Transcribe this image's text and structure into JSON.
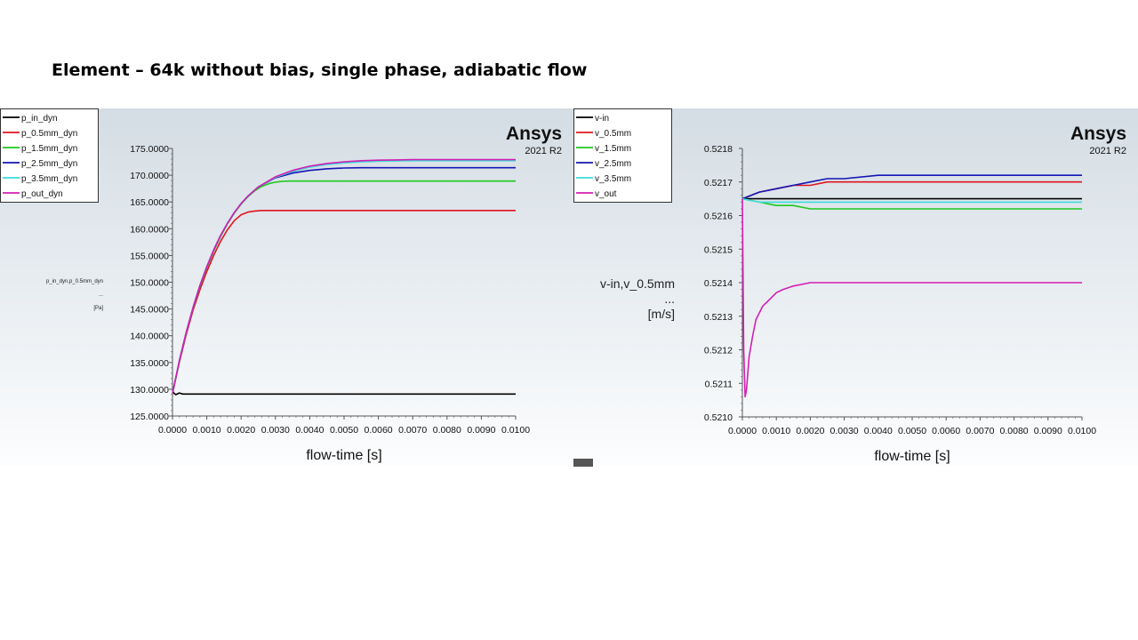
{
  "slide": {
    "title": "Element – 64k without bias, single phase, adiabatic flow"
  },
  "brand": {
    "name": "Ansys",
    "version": "2021 R2"
  },
  "colors": {
    "background_top": "#d4dde4",
    "background_bottom": "#fcfdfe",
    "black": "#000000",
    "red": "#e0141e",
    "green": "#1ec81e",
    "blue": "#1414b4",
    "cyan": "#3cdcdc",
    "magenta": "#d21eb4"
  },
  "chart_data": [
    {
      "type": "line",
      "title": "p_in_dyn,p_0.5mm_dyn ...",
      "xlabel": "flow-time [s]",
      "ylabel_lines": [
        "p_in_dyn,p_0.5mm_dyn",
        "...",
        "[Pa]"
      ],
      "xlim": [
        0.0,
        0.01
      ],
      "ylim": [
        125.0,
        175.0
      ],
      "x_ticks": [
        "0.0000",
        "0.0010",
        "0.0020",
        "0.0030",
        "0.0040",
        "0.0050",
        "0.0060",
        "0.0070",
        "0.0080",
        "0.0090",
        "0.0100"
      ],
      "y_ticks": [
        "125.0000",
        "130.0000",
        "135.0000",
        "140.0000",
        "145.0000",
        "150.0000",
        "155.0000",
        "160.0000",
        "165.0000",
        "170.0000",
        "175.0000"
      ],
      "legend": [
        "p_in_dyn",
        "p_0.5mm_dyn",
        "p_1.5mm_dyn",
        "p_2.5mm_dyn",
        "p_3.5mm_dyn",
        "p_out_dyn"
      ],
      "series": [
        {
          "name": "p_in_dyn",
          "color": "black",
          "x": [
            0,
            5e-05,
            0.0001,
            0.0002,
            0.0003,
            0.0005,
            0.001,
            0.01
          ],
          "y": [
            129.8,
            129.2,
            129.0,
            129.3,
            129.1,
            129.1,
            129.1,
            129.1
          ]
        },
        {
          "name": "p_0.5mm_dyn",
          "color": "red",
          "x": [
            0,
            0.0002,
            0.0004,
            0.0006,
            0.0008,
            0.001,
            0.0012,
            0.0014,
            0.0016,
            0.0018,
            0.002,
            0.0022,
            0.0024,
            0.0026,
            0.003,
            0.004,
            0.01
          ],
          "y": [
            129.2,
            135.0,
            140.2,
            144.8,
            148.6,
            152.0,
            155.0,
            157.6,
            159.8,
            161.5,
            162.6,
            163.1,
            163.3,
            163.4,
            163.4,
            163.4,
            163.4
          ]
        },
        {
          "name": "p_1.5mm_dyn",
          "color": "green",
          "x": [
            0,
            0.0002,
            0.0004,
            0.0006,
            0.0008,
            0.001,
            0.0012,
            0.0014,
            0.0016,
            0.0018,
            0.002,
            0.0022,
            0.0024,
            0.0026,
            0.0028,
            0.003,
            0.0032,
            0.0034,
            0.0036,
            0.004,
            0.01
          ],
          "y": [
            129.2,
            135.2,
            140.5,
            145.2,
            149.2,
            152.7,
            155.8,
            158.5,
            160.9,
            162.9,
            164.6,
            166.0,
            167.1,
            167.9,
            168.4,
            168.7,
            168.85,
            168.9,
            168.9,
            168.9,
            168.9
          ]
        },
        {
          "name": "p_2.5mm_dyn",
          "color": "blue",
          "x": [
            0,
            0.0002,
            0.0004,
            0.0006,
            0.0008,
            0.001,
            0.0012,
            0.0014,
            0.0016,
            0.0018,
            0.002,
            0.0022,
            0.0025,
            0.003,
            0.0035,
            0.004,
            0.0045,
            0.005,
            0.0055,
            0.006,
            0.007,
            0.01
          ],
          "y": [
            129.2,
            135.3,
            140.6,
            145.3,
            149.4,
            152.9,
            156.0,
            158.7,
            161.0,
            163.0,
            164.7,
            166.1,
            167.8,
            169.5,
            170.4,
            170.9,
            171.2,
            171.35,
            171.4,
            171.4,
            171.4,
            171.4
          ]
        },
        {
          "name": "p_3.5mm_dyn",
          "color": "cyan",
          "x": [
            0,
            0.0002,
            0.0004,
            0.0006,
            0.0008,
            0.001,
            0.0012,
            0.0014,
            0.0016,
            0.0018,
            0.002,
            0.0022,
            0.0025,
            0.003,
            0.0035,
            0.004,
            0.0045,
            0.005,
            0.0055,
            0.006,
            0.0065,
            0.007,
            0.008,
            0.01
          ],
          "y": [
            129.2,
            135.3,
            140.6,
            145.3,
            149.4,
            152.9,
            156.0,
            158.7,
            161.0,
            163.0,
            164.7,
            166.1,
            167.8,
            169.6,
            170.7,
            171.5,
            172.0,
            172.3,
            172.5,
            172.6,
            172.65,
            172.7,
            172.7,
            172.7
          ]
        },
        {
          "name": "p_out_dyn",
          "color": "magenta",
          "x": [
            0,
            0.0002,
            0.0004,
            0.0006,
            0.0008,
            0.001,
            0.0012,
            0.0014,
            0.0016,
            0.0018,
            0.002,
            0.0022,
            0.0025,
            0.003,
            0.0035,
            0.004,
            0.0045,
            0.005,
            0.0055,
            0.006,
            0.0065,
            0.007,
            0.008,
            0.01
          ],
          "y": [
            129.2,
            135.3,
            140.6,
            145.3,
            149.4,
            152.9,
            156.0,
            158.7,
            161.0,
            163.0,
            164.7,
            166.1,
            167.8,
            169.7,
            170.9,
            171.7,
            172.2,
            172.5,
            172.7,
            172.8,
            172.85,
            172.9,
            172.9,
            172.9
          ]
        }
      ]
    },
    {
      "type": "line",
      "title": "v-in,v_0.5mm ...",
      "xlabel": "flow-time [s]",
      "ylabel_lines": [
        "v-in,v_0.5mm",
        "...",
        "[m/s]"
      ],
      "xlim": [
        0.0,
        0.01
      ],
      "ylim": [
        0.521,
        0.5218
      ],
      "x_ticks": [
        "0.0000",
        "0.0010",
        "0.0020",
        "0.0030",
        "0.0040",
        "0.0050",
        "0.0060",
        "0.0070",
        "0.0080",
        "0.0090",
        "0.0100"
      ],
      "y_ticks": [
        "0.5210",
        "0.5211",
        "0.5212",
        "0.5213",
        "0.5214",
        "0.5215",
        "0.5216",
        "0.5217",
        "0.5218"
      ],
      "legend": [
        "v-in",
        "v_0.5mm",
        "v_1.5mm",
        "v_2.5mm",
        "v_3.5mm",
        "v_out"
      ],
      "series": [
        {
          "name": "v-in",
          "color": "black",
          "x": [
            0,
            0.0002,
            0.01
          ],
          "y": [
            0.52165,
            0.52165,
            0.52165
          ]
        },
        {
          "name": "v_0.5mm",
          "color": "red",
          "x": [
            0,
            0.0005,
            0.001,
            0.0015,
            0.002,
            0.0025,
            0.003,
            0.004,
            0.005,
            0.01
          ],
          "y": [
            0.52165,
            0.52167,
            0.52168,
            0.52169,
            0.52169,
            0.5217,
            0.5217,
            0.5217,
            0.5217,
            0.5217
          ]
        },
        {
          "name": "v_1.5mm",
          "color": "green",
          "x": [
            0,
            0.0005,
            0.001,
            0.0015,
            0.002,
            0.003,
            0.004,
            0.01
          ],
          "y": [
            0.52165,
            0.52164,
            0.52163,
            0.52163,
            0.52162,
            0.52162,
            0.52162,
            0.52162
          ]
        },
        {
          "name": "v_2.5mm",
          "color": "blue",
          "x": [
            0,
            0.0005,
            0.001,
            0.0015,
            0.002,
            0.0025,
            0.003,
            0.004,
            0.005,
            0.006,
            0.01
          ],
          "y": [
            0.52165,
            0.52167,
            0.52168,
            0.52169,
            0.5217,
            0.52171,
            0.52171,
            0.52172,
            0.52172,
            0.52172,
            0.52172
          ]
        },
        {
          "name": "v_3.5mm",
          "color": "cyan",
          "x": [
            0,
            0.0005,
            0.001,
            0.002,
            0.003,
            0.004,
            0.01
          ],
          "y": [
            0.52165,
            0.52164,
            0.52164,
            0.52164,
            0.52164,
            0.52164,
            0.52164
          ]
        },
        {
          "name": "v_out",
          "color": "magenta",
          "x": [
            0,
            4e-05,
            8e-05,
            0.00012,
            0.0002,
            0.0003,
            0.0004,
            0.0005,
            0.0006,
            0.0008,
            0.001,
            0.0012,
            0.0015,
            0.002,
            0.0025,
            0.003,
            0.004,
            0.005,
            0.006,
            0.007,
            0.008,
            0.009,
            0.01
          ],
          "y": [
            0.52165,
            0.5212,
            0.52106,
            0.52108,
            0.52118,
            0.52124,
            0.52129,
            0.52131,
            0.52133,
            0.52135,
            0.52137,
            0.52138,
            0.52139,
            0.5214,
            0.5214,
            0.5214,
            0.5214,
            0.5214,
            0.5214,
            0.5214,
            0.5214,
            0.5214,
            0.5214
          ]
        }
      ]
    }
  ]
}
